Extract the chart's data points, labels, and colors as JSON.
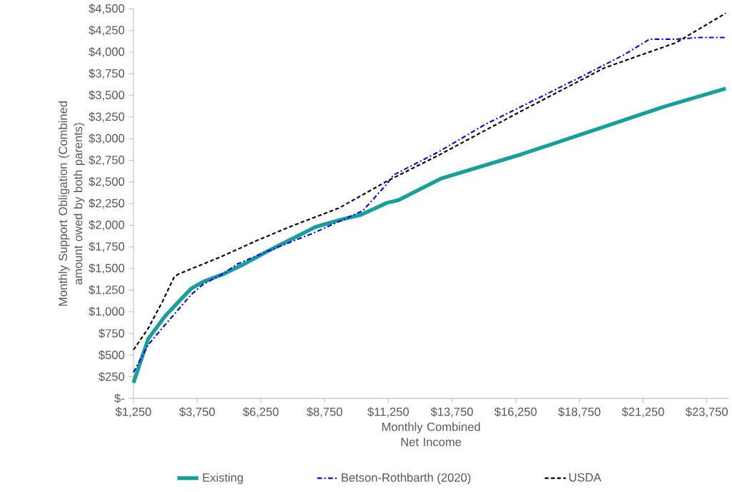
{
  "chart_data": {
    "type": "line",
    "xlabel": "Monthly Combined Net Income",
    "ylabel": "Monthly Support Obligation (Combined amount owed by both parents)",
    "x": [
      1250,
      1830,
      2490,
      3000,
      3520,
      4000,
      4730,
      5580,
      6510,
      7450,
      8390,
      9320,
      10170,
      11200,
      11640,
      13320,
      16470,
      19740,
      22060,
      24490
    ],
    "series": [
      {
        "name": "Existing",
        "color": "#17a09a",
        "line_style": "solid",
        "values": [
          180,
          690,
          950,
          1110,
          1270,
          1350,
          1430,
          1550,
          1700,
          1840,
          1980,
          2060,
          2120,
          2260,
          2290,
          2540,
          2820,
          3140,
          3370,
          3580
        ]
      },
      {
        "name": "Betson-Rothbarth (2020)",
        "color": "#0000ff",
        "line_style": "dashdot",
        "x": [
          1250,
          1830,
          2490,
          3520,
          3990,
          4830,
          5300,
          6510,
          8390,
          10260,
          11200,
          11450,
          13230,
          15080,
          16870,
          18710,
          20500,
          21500,
          22540,
          23460,
          24490
        ],
        "values": [
          300,
          620,
          850,
          1200,
          1320,
          1450,
          1550,
          1700,
          1920,
          2170,
          2480,
          2580,
          2850,
          3170,
          3430,
          3700,
          3970,
          4150,
          4150,
          4170,
          4170
        ]
      },
      {
        "name": "USDA",
        "color": "#000000",
        "line_style": "dashed",
        "x": [
          1250,
          1830,
          2390,
          2860,
          3050,
          4640,
          6140,
          7450,
          9320,
          11200,
          13230,
          16470,
          19740,
          22540,
          24490
        ],
        "values": [
          560,
          810,
          1120,
          1410,
          1440,
          1630,
          1830,
          1990,
          2200,
          2510,
          2810,
          3320,
          3820,
          4110,
          4450
        ]
      }
    ],
    "xlim": [
      1250,
      24600
    ],
    "xticks": [
      {
        "value": 1250,
        "label": "$1,250"
      },
      {
        "value": 3750,
        "label": "$3,750"
      },
      {
        "value": 6250,
        "label": "$6,250"
      },
      {
        "value": 8750,
        "label": "$8,750"
      },
      {
        "value": 11250,
        "label": "$11,250"
      },
      {
        "value": 13750,
        "label": "$13,750"
      },
      {
        "value": 16250,
        "label": "$16,250"
      },
      {
        "value": 18750,
        "label": "$18,750"
      },
      {
        "value": 21250,
        "label": "$21,250"
      },
      {
        "value": 23750,
        "label": "$23,750"
      }
    ],
    "ylim": [
      0,
      4500
    ],
    "yticks": [
      {
        "value": 0,
        "label": "$-"
      },
      {
        "value": 250,
        "label": "$250"
      },
      {
        "value": 500,
        "label": "$500"
      },
      {
        "value": 750,
        "label": "$750"
      },
      {
        "value": 1000,
        "label": "$1,000"
      },
      {
        "value": 1250,
        "label": "$1,250"
      },
      {
        "value": 1500,
        "label": "$1,500"
      },
      {
        "value": 1750,
        "label": "$1,750"
      },
      {
        "value": 2000,
        "label": "$2,000"
      },
      {
        "value": 2250,
        "label": "$2,250"
      },
      {
        "value": 2500,
        "label": "$2,500"
      },
      {
        "value": 2750,
        "label": "$2,750"
      },
      {
        "value": 3000,
        "label": "$3,000"
      },
      {
        "value": 3250,
        "label": "$3,250"
      },
      {
        "value": 3500,
        "label": "$3,500"
      },
      {
        "value": 3750,
        "label": "$3,750"
      },
      {
        "value": 4000,
        "label": "$4,000"
      },
      {
        "value": 4250,
        "label": "$4,250"
      },
      {
        "value": 4500,
        "label": "$4,500"
      }
    ],
    "grid": false,
    "legend": "bottom",
    "marker": "none"
  }
}
